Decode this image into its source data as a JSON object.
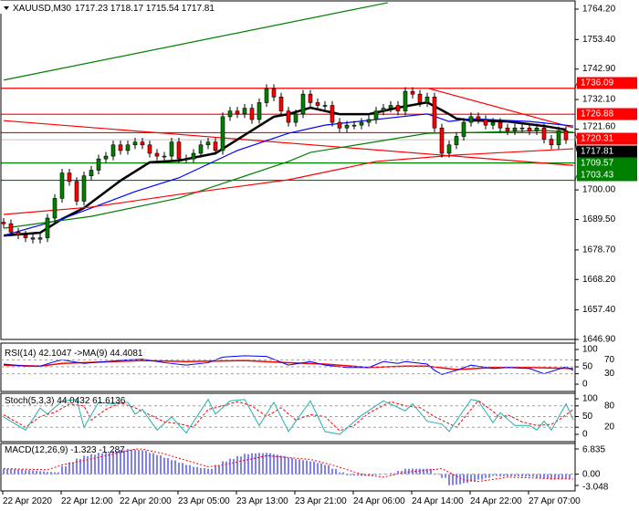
{
  "header": {
    "arrow_icon": "triangle-down-icon",
    "symbol": "XAUUSD,M30",
    "ohlc": "1717.23 1718.17 1715.54 1717.81"
  },
  "colors": {
    "bull": "#008000",
    "bear": "#ff0000",
    "level_red": "#ff0000",
    "level_green": "#008000",
    "ma_fast": "#000000",
    "ma_blue": "#0000ff",
    "ma_green": "#008000",
    "ma_red": "#ff0000",
    "rsi": "#0000ff",
    "rsi_ma": "#ff0000",
    "stoch_main": "#20b2aa",
    "stoch_signal": "#ff0000",
    "macd_hist": "#0000ff",
    "macd_signal": "#ff0000"
  },
  "chart_data": [
    {
      "type": "candlestick",
      "title": "XAUUSD,M30",
      "price_ticks": [
        "1764.20",
        "1753.40",
        "1742.90",
        "1732.10",
        "1721.60",
        "1700.00",
        "1689.50",
        "1678.70",
        "1668.20",
        "1657.40",
        "1646.90"
      ],
      "ylim": [
        1646.9,
        1764.2
      ],
      "closes": [
        1688,
        1685,
        1684,
        1683,
        1682.5,
        1683,
        1690,
        1697,
        1706,
        1703,
        1696,
        1705,
        1707,
        1711,
        1712,
        1716,
        1714,
        1716,
        1717,
        1716,
        1713,
        1712,
        1712,
        1717,
        1711,
        1711,
        1713,
        1716,
        1717,
        1714,
        1726,
        1728,
        1727,
        1729,
        1725,
        1731,
        1736,
        1733,
        1728,
        1724,
        1727,
        1734,
        1731,
        1730,
        1730,
        1724,
        1722,
        1723,
        1723,
        1724,
        1725,
        1728,
        1729,
        1730,
        1728,
        1735,
        1734,
        1731,
        1733,
        1722,
        1713,
        1716,
        1719,
        1724,
        1726,
        1725,
        1723,
        1724,
        1722,
        1721,
        1722,
        1722,
        1721,
        1722,
        1718,
        1716,
        1721,
        1717.81
      ],
      "moving_averages": [
        {
          "color_key": "ma_fast",
          "points": [
            [
              0,
              1683.8
            ],
            [
              5,
              1684.8
            ],
            [
              8,
              1689.7
            ],
            [
              11,
              1693.6
            ],
            [
              16,
              1703.3
            ],
            [
              20,
              1709.8
            ],
            [
              24,
              1710.4
            ],
            [
              29,
              1713
            ],
            [
              33,
              1719.5
            ],
            [
              37,
              1726
            ],
            [
              39,
              1726.9
            ],
            [
              42,
              1729.2
            ],
            [
              46,
              1726.9
            ],
            [
              50,
              1726.9
            ],
            [
              54,
              1729.2
            ],
            [
              58,
              1731.1
            ],
            [
              61,
              1726.9
            ],
            [
              62,
              1725.3
            ],
            [
              64,
              1724.7
            ],
            [
              69,
              1724.3
            ],
            [
              74,
              1722.7
            ],
            [
              77,
              1721.4
            ]
          ]
        },
        {
          "color_key": "ma_blue",
          "points": [
            [
              0,
              1683.8
            ],
            [
              8,
              1689.7
            ],
            [
              18,
              1699.4
            ],
            [
              24,
              1704.3
            ],
            [
              32,
              1714
            ],
            [
              39,
              1720.1
            ],
            [
              44,
              1723
            ],
            [
              52,
              1725.3
            ],
            [
              58,
              1727
            ],
            [
              61,
              1724.3
            ],
            [
              64,
              1725.3
            ],
            [
              72,
              1724.3
            ],
            [
              78,
              1722.7
            ]
          ]
        },
        {
          "color_key": "ma_green",
          "points": [
            [
              0,
              1686.4
            ],
            [
              12,
              1690.6
            ],
            [
              24,
              1697.1
            ],
            [
              39,
              1710.1
            ],
            [
              42,
              1713.3
            ],
            [
              58,
              1720.1
            ],
            [
              66,
              1720.5
            ],
            [
              74,
              1721.1
            ],
            [
              78,
              1720.5
            ]
          ]
        },
        {
          "color_key": "ma_red",
          "points": [
            [
              0,
              1691.3
            ],
            [
              12,
              1693.9
            ],
            [
              24,
              1698.4
            ],
            [
              39,
              1703.6
            ],
            [
              51,
              1710.1
            ],
            [
              62,
              1712.4
            ],
            [
              78,
              1714.6
            ]
          ]
        }
      ],
      "trendlines": [
        {
          "color_key": "level_green",
          "points": [
            [
              0,
              1739
            ],
            [
              52.6,
              1766.5
            ]
          ]
        },
        {
          "color_key": "level_red",
          "points": [
            [
              0,
              1724.6
            ],
            [
              78,
              1708.7
            ]
          ]
        },
        {
          "color_key": "level_red",
          "points": [
            [
              58.25,
              1736.0
            ],
            [
              78,
              1722.1
            ]
          ]
        }
      ],
      "levels": [
        {
          "label": "1736.09",
          "value": 1736.09,
          "color_key": "level_red"
        },
        {
          "label": "1726.88",
          "value": 1726.88,
          "color_key": "level_red"
        },
        {
          "label": "1720.31",
          "value": 1720.31,
          "color_key": "level_red"
        },
        {
          "label": "1709.57",
          "value": 1709.57,
          "color_key": "level_green"
        },
        {
          "label": "1703.43",
          "value": 1703.43,
          "color_key": "level_green"
        }
      ],
      "current_price": {
        "label": "1717.81",
        "value": 1717.81
      }
    },
    {
      "type": "line",
      "title": "RSI(14) 42.1047  ->MA(9) 44.4081",
      "ticks": [
        "100",
        "70",
        "50",
        "30",
        "0"
      ],
      "ylim": [
        0,
        100
      ],
      "levels": [
        70,
        50,
        30
      ],
      "rsi": [
        [
          0,
          58
        ],
        [
          3,
          52
        ],
        [
          5,
          52
        ],
        [
          7,
          65
        ],
        [
          8,
          70
        ],
        [
          11,
          60
        ],
        [
          14,
          65
        ],
        [
          17,
          70
        ],
        [
          19,
          72
        ],
        [
          22,
          62
        ],
        [
          25,
          55
        ],
        [
          28,
          62
        ],
        [
          30,
          78
        ],
        [
          33,
          82
        ],
        [
          36,
          80
        ],
        [
          39,
          55
        ],
        [
          42,
          65
        ],
        [
          44,
          55
        ],
        [
          47,
          48
        ],
        [
          50,
          48
        ],
        [
          52,
          65
        ],
        [
          54,
          60
        ],
        [
          55,
          65
        ],
        [
          58,
          58
        ],
        [
          59,
          40
        ],
        [
          60,
          28
        ],
        [
          62,
          40
        ],
        [
          64,
          55
        ],
        [
          67,
          45
        ],
        [
          69,
          48
        ],
        [
          72,
          45
        ],
        [
          74,
          30
        ],
        [
          77,
          50
        ],
        [
          78,
          40
        ]
      ],
      "ma": [
        [
          0,
          55
        ],
        [
          5,
          52
        ],
        [
          8,
          60
        ],
        [
          19,
          68
        ],
        [
          25,
          65
        ],
        [
          33,
          68
        ],
        [
          39,
          62
        ],
        [
          44,
          58
        ],
        [
          50,
          48
        ],
        [
          55,
          52
        ],
        [
          58,
          52
        ],
        [
          62,
          42
        ],
        [
          67,
          48
        ],
        [
          72,
          48
        ],
        [
          78,
          45
        ]
      ]
    },
    {
      "type": "line",
      "title": "Stoch(5,3,3) 44.0432 61.6136",
      "ticks": [
        "100",
        "80",
        "50",
        "20",
        "0"
      ],
      "ylim": [
        0,
        100
      ],
      "levels": [
        80,
        50,
        20
      ],
      "main": [
        [
          0,
          49
        ],
        [
          3,
          12
        ],
        [
          5,
          74
        ],
        [
          6,
          57
        ],
        [
          8,
          94
        ],
        [
          10,
          98
        ],
        [
          11,
          20
        ],
        [
          13,
          90
        ],
        [
          15,
          86
        ],
        [
          17,
          90
        ],
        [
          18,
          57
        ],
        [
          19,
          70
        ],
        [
          21,
          12
        ],
        [
          23,
          49
        ],
        [
          25,
          4
        ],
        [
          28,
          98
        ],
        [
          29,
          57
        ],
        [
          31,
          94
        ],
        [
          33,
          98
        ],
        [
          35,
          25
        ],
        [
          37,
          90
        ],
        [
          39,
          8
        ],
        [
          42,
          94
        ],
        [
          44,
          8
        ],
        [
          46,
          0
        ],
        [
          49,
          53
        ],
        [
          52,
          94
        ],
        [
          55,
          66
        ],
        [
          56,
          86
        ],
        [
          58,
          37
        ],
        [
          60,
          29
        ],
        [
          61,
          8
        ],
        [
          64,
          98
        ],
        [
          65,
          94
        ],
        [
          67,
          33
        ],
        [
          68,
          61
        ],
        [
          70,
          25
        ],
        [
          72,
          25
        ],
        [
          73,
          12
        ],
        [
          74,
          37
        ],
        [
          75,
          12
        ],
        [
          77,
          86
        ],
        [
          78,
          41
        ]
      ],
      "signal": [
        [
          0,
          55
        ],
        [
          3,
          20
        ],
        [
          5,
          50
        ],
        [
          7,
          62
        ],
        [
          9,
          85
        ],
        [
          11,
          80
        ],
        [
          12,
          40
        ],
        [
          14,
          70
        ],
        [
          16,
          88
        ],
        [
          18,
          75
        ],
        [
          20,
          55
        ],
        [
          22,
          35
        ],
        [
          24,
          30
        ],
        [
          26,
          20
        ],
        [
          28,
          70
        ],
        [
          30,
          80
        ],
        [
          32,
          92
        ],
        [
          34,
          80
        ],
        [
          36,
          50
        ],
        [
          38,
          75
        ],
        [
          40,
          40
        ],
        [
          42,
          55
        ],
        [
          44,
          50
        ],
        [
          46,
          10
        ],
        [
          48,
          25
        ],
        [
          50,
          60
        ],
        [
          53,
          92
        ],
        [
          55,
          80
        ],
        [
          57,
          75
        ],
        [
          59,
          50
        ],
        [
          61,
          30
        ],
        [
          62,
          20
        ],
        [
          65,
          95
        ],
        [
          67,
          65
        ],
        [
          68,
          45
        ],
        [
          69,
          55
        ],
        [
          71,
          35
        ],
        [
          73,
          25
        ],
        [
          75,
          28
        ],
        [
          76,
          40
        ],
        [
          78,
          70
        ]
      ]
    },
    {
      "type": "bar",
      "title": "MACD(12,26,9) -1.323 -1.287",
      "ticks": [
        "6.835",
        "0.00",
        "-3.048"
      ],
      "ylim": [
        -3.048,
        6.835
      ],
      "histogram": [
        1.5,
        1.4,
        1.3,
        1.1,
        1.0,
        0.8,
        0.6,
        0.5,
        2.2,
        3.2,
        4.2,
        5.0,
        5.4,
        5.8,
        6.0,
        6.3,
        6.6,
        6.8,
        6.7,
        6.5,
        5.8,
        5.2,
        4.5,
        3.8,
        3.1,
        2.5,
        2.0,
        1.7,
        1.5,
        2.5,
        3.5,
        4.2,
        4.9,
        5.5,
        5.7,
        5.8,
        5.8,
        5.4,
        5.0,
        4.5,
        4.1,
        3.8,
        3.5,
        3.0,
        2.5,
        1.5,
        0.5,
        -0.3,
        -0.4,
        -0.5,
        -0.5,
        -0.2,
        0.1,
        0.3,
        0.9,
        1.5,
        1.5,
        1.5,
        1.5,
        0.2,
        -1.0,
        -3.0,
        -2.8,
        -2.4,
        -2.0,
        -1.5,
        -1.0,
        -0.5,
        -0.6,
        -0.6,
        -0.6,
        -0.7,
        -0.7,
        -1.0,
        -1.3,
        -1.5,
        -1.4,
        -1.3
      ],
      "signal": [
        [
          0,
          1.5
        ],
        [
          6,
          1.2
        ],
        [
          8,
          2.5
        ],
        [
          14,
          5
        ],
        [
          18,
          6.8
        ],
        [
          19,
          6.8
        ],
        [
          22,
          5.5
        ],
        [
          28,
          2
        ],
        [
          30,
          2.5
        ],
        [
          36,
          5
        ],
        [
          42,
          4
        ],
        [
          45,
          2.5
        ],
        [
          49,
          0
        ],
        [
          52,
          -0.8
        ],
        [
          55,
          0.5
        ],
        [
          60,
          1.5
        ],
        [
          63,
          -1.5
        ],
        [
          65,
          -2
        ],
        [
          69,
          -0.8
        ],
        [
          75,
          -1.2
        ],
        [
          78,
          -1.3
        ]
      ]
    }
  ],
  "time_axis": [
    "22 Apr 2020",
    "22 Apr 12:00",
    "22 Apr 20:00",
    "23 Apr 05:00",
    "23 Apr 13:00",
    "23 Apr 21:00",
    "24 Apr 06:00",
    "24 Apr 14:00",
    "24 Apr 22:00",
    "27 Apr 07:00"
  ]
}
